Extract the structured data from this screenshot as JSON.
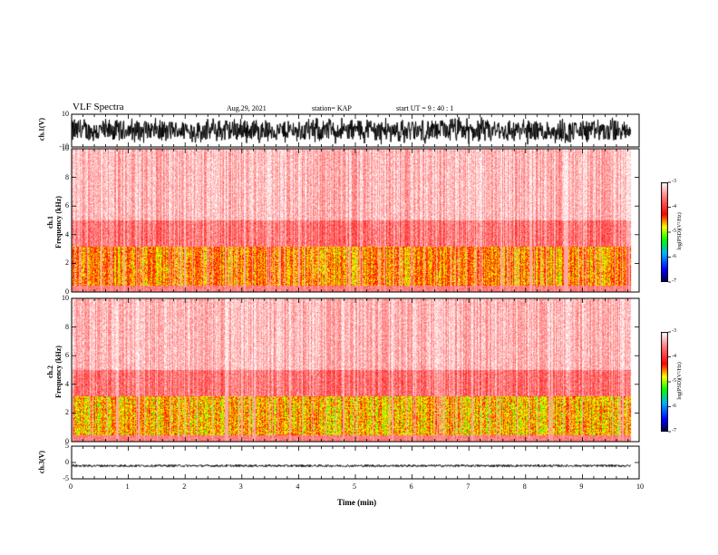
{
  "header": {
    "title": "VLF Spectra",
    "date": "Aug.29, 2021",
    "station": "station= KAP",
    "start": "start  UT =   9 : 40 : 1"
  },
  "chart_data": [
    {
      "type": "line",
      "panel": "ch1-waveform",
      "ylabel": "ch.1(V)",
      "ylim": [
        -10,
        10
      ],
      "yticks": [
        "10",
        "-10"
      ],
      "description_values": "dense noisy waveform spanning roughly -9 to +9 V over 0 to 9.85 min"
    },
    {
      "type": "heatmap",
      "panel": "ch1-spectrogram",
      "ylabel_top": "ch.1",
      "ylabel": "Frequency (kHz)",
      "ylim": [
        0,
        10
      ],
      "yticks": [
        "10",
        "8",
        "6",
        "4",
        "2",
        "0"
      ],
      "xlim": [
        0,
        9.85
      ],
      "colorbar": {
        "label": "log(PSD)(V²/Hz)",
        "range": [
          -7,
          -3
        ],
        "ticks": [
          "-3",
          "-4",
          "-5",
          "-6",
          "-7"
        ]
      }
    },
    {
      "type": "heatmap",
      "panel": "ch2-spectrogram",
      "ylabel_top": "ch.2",
      "ylabel": "Frequency (kHz)",
      "ylim": [
        0,
        10
      ],
      "yticks": [
        "10",
        "8",
        "6",
        "4",
        "2",
        "0"
      ],
      "xlim": [
        0,
        9.85
      ],
      "colorbar": {
        "label": "log(PSD)(V²/Hz)",
        "range": [
          -7,
          -3
        ],
        "ticks": [
          "-3",
          "-4",
          "-5",
          "-6",
          "-7"
        ]
      }
    },
    {
      "type": "line",
      "panel": "ch3-waveform",
      "ylabel": "ch.3(V)",
      "ylim": [
        -5,
        5
      ],
      "yticks": [
        "5",
        "0",
        "-5"
      ],
      "description_values": "nearly flat trace near -1 V with small fluctuations"
    }
  ],
  "xaxis": {
    "label": "Time (min)",
    "ticks": [
      "0",
      "1",
      "2",
      "3",
      "4",
      "5",
      "6",
      "7",
      "8",
      "9",
      "10"
    ],
    "xlim": [
      0,
      10
    ]
  },
  "colors": {
    "waveform": "#000000",
    "colorbar": [
      "#00004a",
      "#0000ff",
      "#00b0ff",
      "#00ff00",
      "#ffff00",
      "#ff0000",
      "#ffffff"
    ]
  }
}
